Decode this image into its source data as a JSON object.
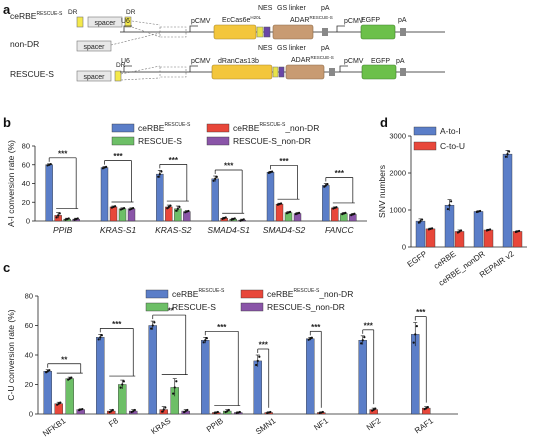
{
  "colors": {
    "blue": "#5b7ec8",
    "red": "#e8473a",
    "green": "#6dbf67",
    "purple": "#8a55a8",
    "yellow": "#f4c534",
    "tan": "#c59a6c",
    "gray": "#8a8a8a",
    "lightgray": "#d8d8d8",
    "darkgreen": "#4a9a3c"
  },
  "panel_a": {
    "letter": "a",
    "constructs": [
      {
        "name": "ceRBE",
        "sup": "RESCUE-S",
        "dr1": "DR",
        "spacer": "spacer",
        "dr2": "DR"
      },
      {
        "name": "non-DR",
        "spacer": "spacer"
      },
      {
        "name": "RESCUE-S",
        "spacer": "spacer",
        "dr": "DR"
      }
    ],
    "top": {
      "u6": "U6",
      "pcmv1": "pCMV",
      "cas": "EcCas6e",
      "cas_sup": "H20L",
      "nes": "NES",
      "gs": "GS linker",
      "adar": "ADAR",
      "adar_sup": "RESCUE-S",
      "pa1": "pA",
      "pcmv2": "pCMV",
      "egfp": "EGFP",
      "pa2": "pA"
    },
    "bottom": {
      "nes": "NES",
      "gs": "GS linker",
      "pa0": "pA",
      "u6": "U6",
      "pcmv1": "pCMV",
      "cas": "dRanCas13b",
      "adar": "ADAR",
      "adar_sup": "RESCUE-S",
      "pcmv2": "pCMV",
      "egfp": "EGFP",
      "pa2": "pA"
    }
  },
  "chart_data": [
    {
      "panel": "b",
      "type": "bar",
      "ylabel": "A-I conversion rate (%)",
      "ylim": [
        0,
        80
      ],
      "yticks": [
        "0",
        "20",
        "40",
        "60",
        "80"
      ],
      "categories": [
        "PPIB",
        "KRAS-S1",
        "KRAS-S2",
        "SMAD4-S1",
        "SMAD4-S2",
        "FANCC"
      ],
      "legend": [
        "ceRBE",
        "ceRBE",
        "RESCUE-S",
        "RESCUE-S_non-DR"
      ],
      "legend_sup": [
        "RESCUE-S",
        "RESCUE-S",
        "",
        ""
      ],
      "legend_suffix": [
        "",
        "_non-DR",
        "",
        ""
      ],
      "series": [
        {
          "values": [
            60,
            57,
            50,
            45,
            52,
            38
          ],
          "errors": [
            1,
            1,
            4,
            3,
            1,
            2
          ]
        },
        {
          "values": [
            6,
            15,
            15,
            3,
            18,
            14
          ],
          "errors": [
            3,
            1,
            2,
            1,
            1,
            1
          ]
        },
        {
          "values": [
            2,
            13,
            13,
            2,
            9,
            8
          ],
          "errors": [
            1,
            1,
            3,
            1,
            1,
            1
          ]
        },
        {
          "values": [
            2,
            13,
            10,
            1,
            8,
            7
          ],
          "errors": [
            1,
            1,
            1,
            1,
            1,
            1
          ]
        }
      ],
      "significance": [
        "***",
        "***",
        "***",
        "***",
        "***",
        "***"
      ]
    },
    {
      "panel": "c",
      "type": "bar",
      "ylabel": "C-U conversion rate (%)",
      "ylim": [
        0,
        80
      ],
      "yticks": [
        "0",
        "20",
        "40",
        "60",
        "80"
      ],
      "categories": [
        "NFKB1",
        "F8",
        "KRAS",
        "PPIB",
        "SMN1",
        "NF1",
        "NF2",
        "RAF1"
      ],
      "legend": [
        "ceRBE",
        "ceRBE",
        "RESCUE-S",
        "RESCUE-S_non-DR"
      ],
      "legend_sup": [
        "RESCUE-S",
        "RESCUE-S",
        "",
        ""
      ],
      "legend_suffix": [
        "",
        "_non-DR",
        "",
        ""
      ],
      "series": [
        {
          "values": [
            29,
            52,
            60,
            50,
            36,
            51,
            50,
            54
          ],
          "errors": [
            1,
            2,
            3,
            2,
            4,
            1,
            3,
            8
          ]
        },
        {
          "values": [
            7,
            2,
            3,
            1,
            1,
            1,
            3,
            4
          ],
          "errors": [
            1,
            1,
            2,
            0.5,
            0.5,
            0.5,
            1,
            1
          ]
        },
        {
          "values": [
            24,
            20,
            18,
            2,
            null,
            null,
            null,
            null
          ],
          "errors": [
            1,
            3,
            6,
            1,
            0,
            0,
            0,
            0
          ]
        },
        {
          "values": [
            3,
            2,
            2,
            1,
            null,
            null,
            null,
            null
          ],
          "errors": [
            0.5,
            1,
            1,
            0.5,
            0,
            0,
            0,
            0
          ]
        }
      ],
      "significance": [
        "**",
        "***",
        "***",
        "***",
        "***",
        "***",
        "***",
        "***"
      ]
    },
    {
      "panel": "d",
      "type": "bar",
      "ylabel": "SNV numbers",
      "ylim": [
        0,
        3000
      ],
      "yticks": [
        "0",
        "1000",
        "2000",
        "3000"
      ],
      "categories": [
        "EGFP",
        "ceRBE",
        "ceRBE_nonDR",
        "REPAIR v2"
      ],
      "legend": [
        "A-to-I",
        "C-to-U"
      ],
      "series": [
        {
          "values": [
            700,
            1130,
            960,
            2510
          ],
          "errors": [
            60,
            150,
            20,
            100
          ]
        },
        {
          "values": [
            490,
            420,
            460,
            420
          ],
          "errors": [
            20,
            40,
            20,
            20
          ]
        }
      ]
    }
  ]
}
